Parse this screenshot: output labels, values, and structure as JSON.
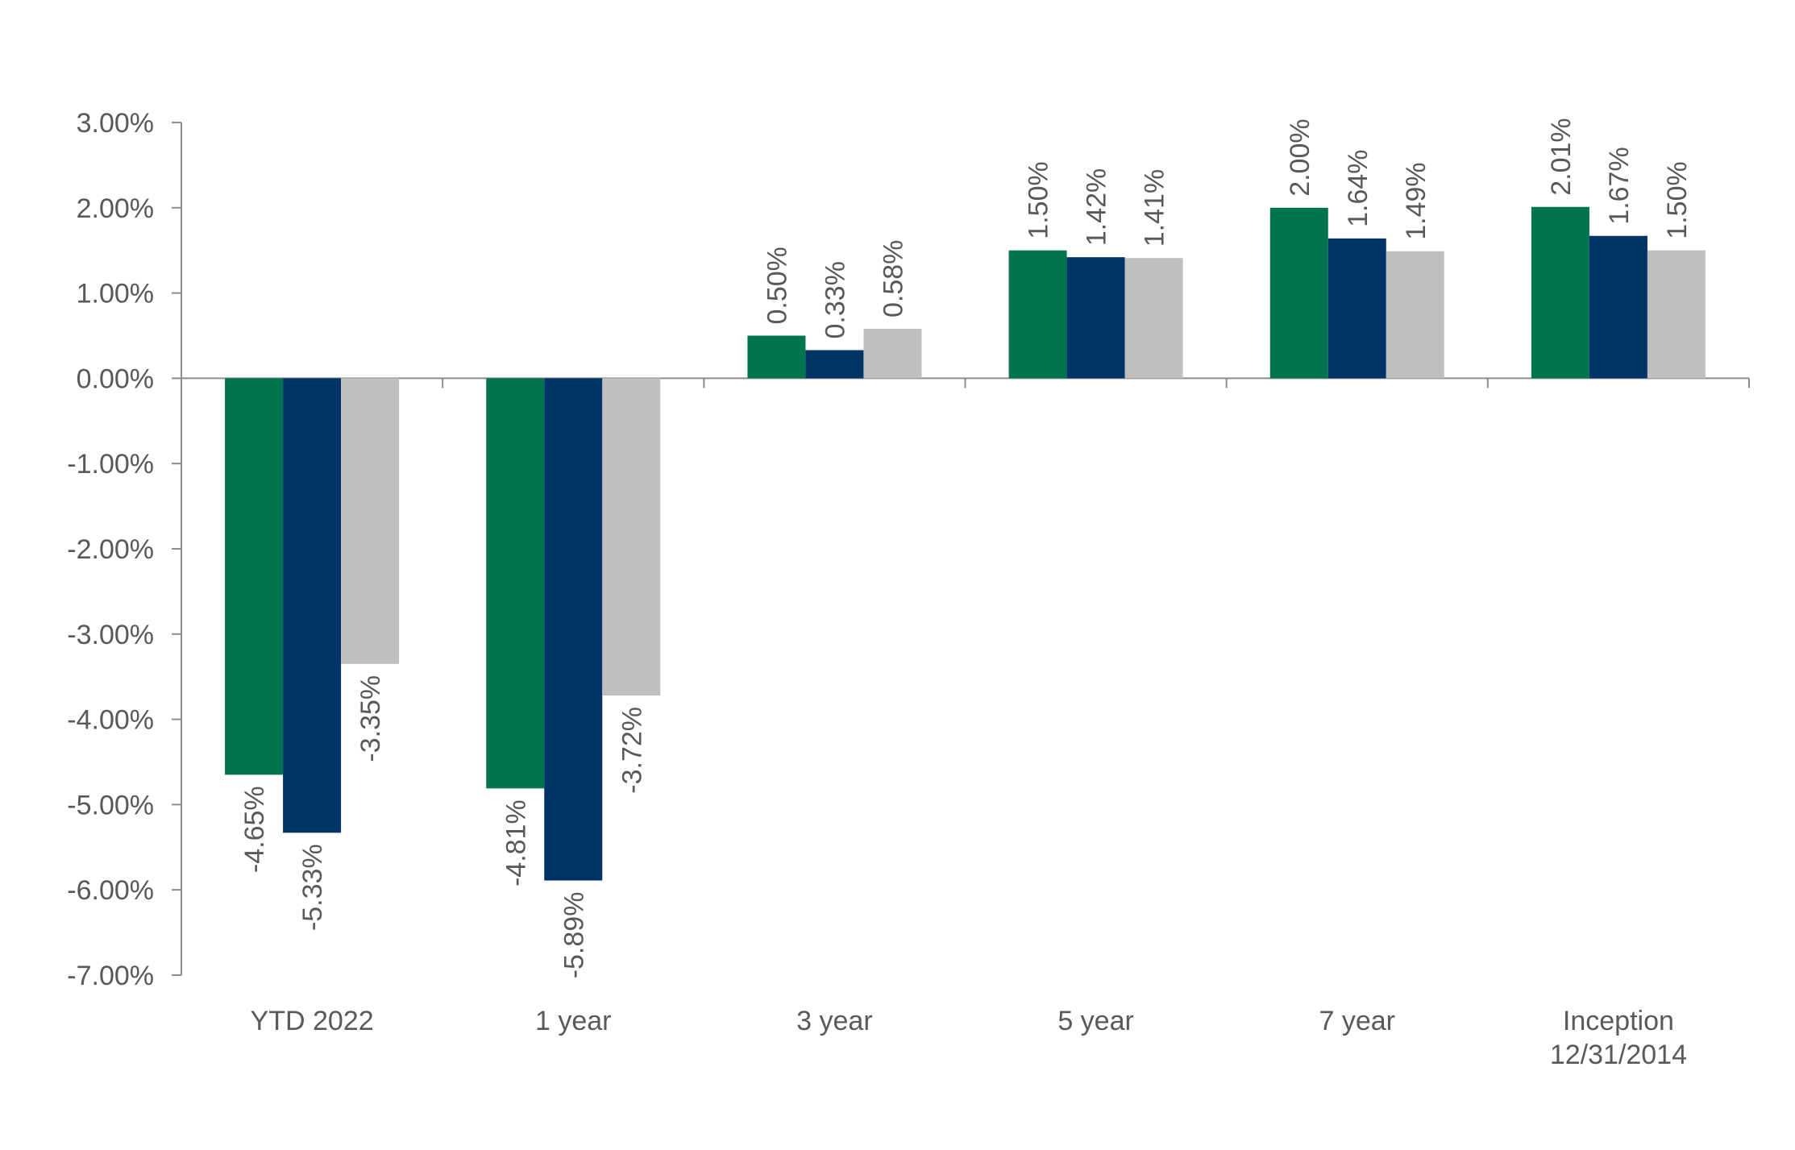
{
  "chart_data": {
    "type": "bar",
    "title": "",
    "xlabel": "",
    "ylabel": "",
    "ylim": [
      -7,
      3
    ],
    "y_ticks": [
      3,
      2,
      1,
      0,
      -1,
      -2,
      -3,
      -4,
      -5,
      -6,
      -7
    ],
    "y_tick_labels": [
      "3.00%",
      "2.00%",
      "1.00%",
      "0.00%",
      "-1.00%",
      "-2.00%",
      "-3.00%",
      "-4.00%",
      "-5.00%",
      "-6.00%",
      "-7.00%"
    ],
    "categories": [
      [
        "YTD 2022"
      ],
      [
        "1 year"
      ],
      [
        "3 year"
      ],
      [
        "5 year"
      ],
      [
        "7 year"
      ],
      [
        "Inception",
        "12/31/2014"
      ]
    ],
    "series": [
      {
        "color": "#00734F",
        "values": [
          -4.65,
          -4.81,
          0.5,
          1.5,
          2.0,
          2.01
        ],
        "labels": [
          "-4.65%",
          "-4.81%",
          "0.50%",
          "1.50%",
          "2.00%",
          "2.01%"
        ]
      },
      {
        "color": "#003366",
        "values": [
          -5.33,
          -5.89,
          0.33,
          1.42,
          1.64,
          1.67
        ],
        "labels": [
          "-5.33%",
          "-5.89%",
          "0.33%",
          "1.42%",
          "1.64%",
          "1.67%"
        ]
      },
      {
        "color": "#BFBFBF",
        "values": [
          -3.35,
          -3.72,
          0.58,
          1.41,
          1.49,
          1.5
        ],
        "labels": [
          "-3.35%",
          "-3.72%",
          "0.58%",
          "1.41%",
          "1.49%",
          "1.50%"
        ]
      }
    ],
    "grid": false,
    "legend": "none",
    "data_labels": "rotated-vertical",
    "colors": {
      "axis": "#8C8C8C",
      "text": "#595959"
    }
  }
}
